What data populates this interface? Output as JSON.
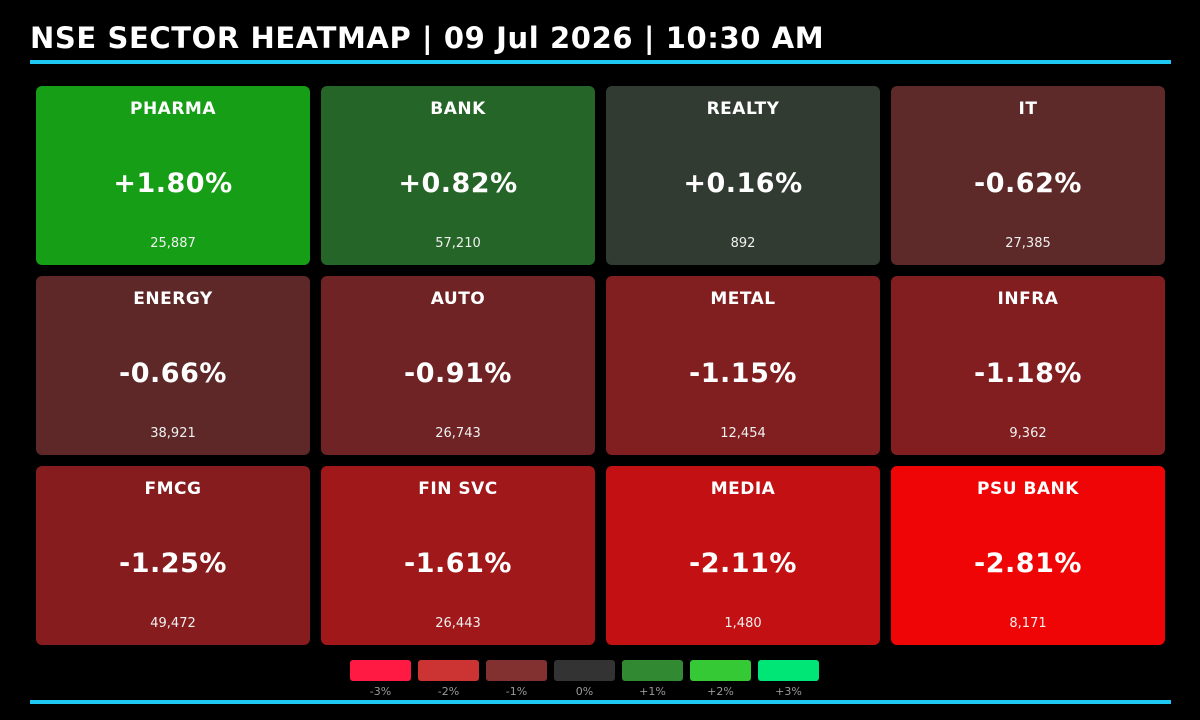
{
  "header": {
    "title": "NSE SECTOR HEATMAP | 09 Jul 2026 | 10:30 AM",
    "rule_color": "#1ec8f0"
  },
  "chart_data": {
    "type": "heatmap",
    "title": "NSE SECTOR HEATMAP | 09 Jul 2026 | 10:30 AM",
    "tiles": [
      {
        "name": "PHARMA",
        "change_pct": 1.8,
        "change_label": "+1.80%",
        "value": "25,887",
        "color": "#169e16"
      },
      {
        "name": "BANK",
        "change_pct": 0.82,
        "change_label": "+0.82%",
        "value": "57,210",
        "color": "#256527"
      },
      {
        "name": "REALTY",
        "change_pct": 0.16,
        "change_label": "+0.16%",
        "value": "892",
        "color": "#323b32"
      },
      {
        "name": "IT",
        "change_pct": -0.62,
        "change_label": "-0.62%",
        "value": "27,385",
        "color": "#5d2929"
      },
      {
        "name": "ENERGY",
        "change_pct": -0.66,
        "change_label": "-0.66%",
        "value": "38,921",
        "color": "#5e2829"
      },
      {
        "name": "AUTO",
        "change_pct": -0.91,
        "change_label": "-0.91%",
        "value": "26,743",
        "color": "#6f2325"
      },
      {
        "name": "METAL",
        "change_pct": -1.15,
        "change_label": "-1.15%",
        "value": "12,454",
        "color": "#801e20"
      },
      {
        "name": "INFRA",
        "change_pct": -1.18,
        "change_label": "-1.18%",
        "value": "9,362",
        "color": "#821d20"
      },
      {
        "name": "FMCG",
        "change_pct": -1.25,
        "change_label": "-1.25%",
        "value": "49,472",
        "color": "#861c1e"
      },
      {
        "name": "FIN SVC",
        "change_pct": -1.61,
        "change_label": "-1.61%",
        "value": "26,443",
        "color": "#a0181a"
      },
      {
        "name": "MEDIA",
        "change_pct": -2.11,
        "change_label": "-2.11%",
        "value": "1,480",
        "color": "#c31113"
      },
      {
        "name": "PSU BANK",
        "change_pct": -2.81,
        "change_label": "-2.81%",
        "value": "8,171",
        "color": "#f00506"
      }
    ],
    "legend": [
      {
        "label": "-3%",
        "color": "#ff1a44"
      },
      {
        "label": "-2%",
        "color": "#cc3333"
      },
      {
        "label": "-1%",
        "color": "#833030"
      },
      {
        "label": "0%",
        "color": "#333333"
      },
      {
        "label": "+1%",
        "color": "#318a31"
      },
      {
        "label": "+2%",
        "color": "#36c936"
      },
      {
        "label": "+3%",
        "color": "#00e676"
      }
    ]
  }
}
